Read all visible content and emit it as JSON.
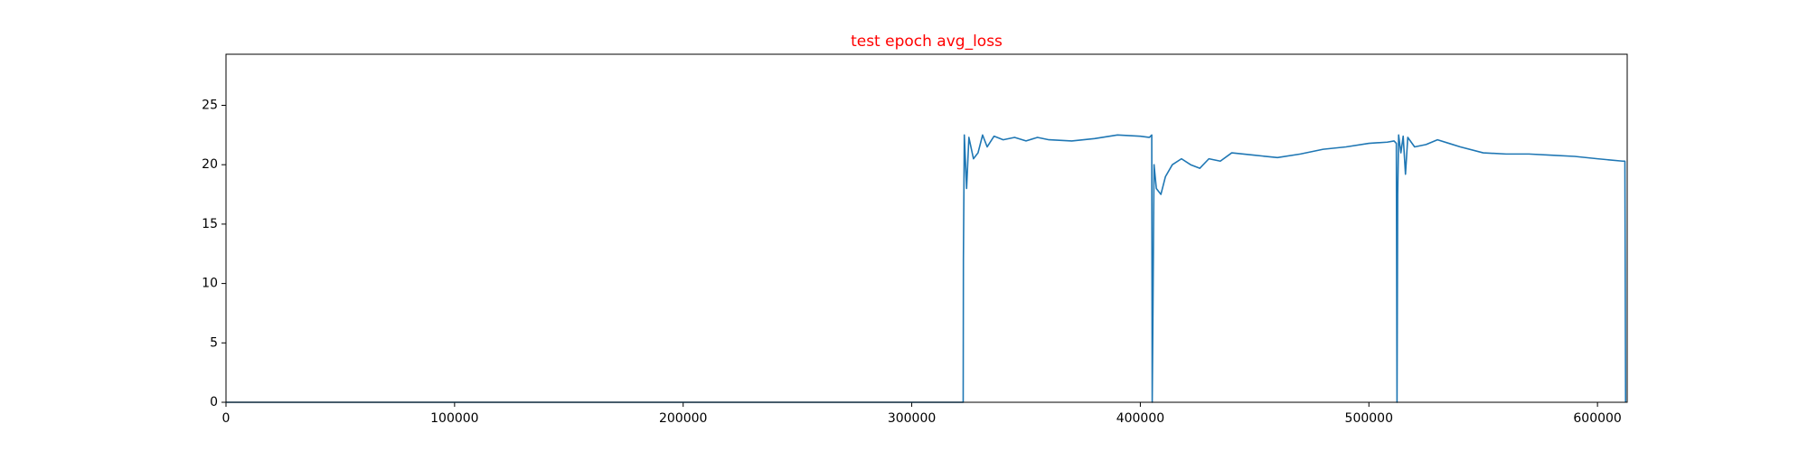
{
  "chart_data": {
    "type": "line",
    "title": "test epoch avg_loss",
    "title_color": "#ff0000",
    "x": [
      0,
      322000,
      322500,
      322600,
      323000,
      324000,
      325000,
      327000,
      329000,
      331000,
      333000,
      336000,
      340000,
      345000,
      350000,
      355000,
      360000,
      370000,
      380000,
      390000,
      400000,
      404000,
      405000,
      405200,
      405500,
      406000,
      407000,
      409000,
      411000,
      414000,
      418000,
      422000,
      426000,
      430000,
      435000,
      440000,
      450000,
      460000,
      470000,
      480000,
      490000,
      500000,
      508000,
      511000,
      512000,
      512300,
      512600,
      513000,
      514000,
      515000,
      516000,
      517000,
      520000,
      525000,
      530000,
      535000,
      540000,
      550000,
      560000,
      570000,
      580000,
      590000,
      600000,
      611000,
      612000,
      612300
    ],
    "series": [
      {
        "color": "#1f77b4",
        "values": [
          0,
          0,
          0,
          12,
          22.5,
          18,
          22.3,
          20.5,
          21,
          22.5,
          21.5,
          22.4,
          22.1,
          22.3,
          22.0,
          22.3,
          22.1,
          22.0,
          22.2,
          22.5,
          22.4,
          22.3,
          22.5,
          0,
          7,
          20,
          18,
          17.5,
          19,
          20,
          20.5,
          20,
          19.7,
          20.5,
          20.3,
          21,
          20.8,
          20.6,
          20.9,
          21.3,
          21.5,
          21.8,
          21.9,
          22,
          21.8,
          0,
          17.5,
          22.5,
          21,
          22.4,
          19.2,
          22.3,
          21.5,
          21.7,
          22.1,
          21.8,
          21.5,
          21,
          20.9,
          20.9,
          20.8,
          20.7,
          20.5,
          20.3,
          20.3,
          0
        ]
      }
    ],
    "xlim": [
      0,
      613000
    ],
    "ylim": [
      0,
      29.3
    ],
    "xticks": [
      0,
      100000,
      200000,
      300000,
      400000,
      500000,
      600000
    ],
    "yticks": [
      0,
      5,
      10,
      15,
      20,
      25
    ]
  }
}
